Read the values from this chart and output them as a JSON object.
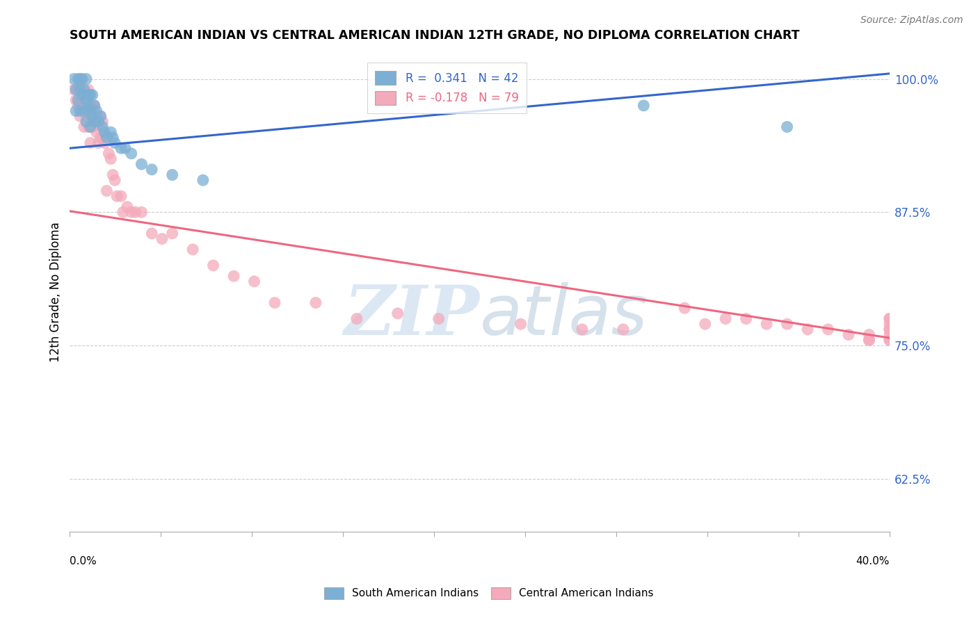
{
  "title": "SOUTH AMERICAN INDIAN VS CENTRAL AMERICAN INDIAN 12TH GRADE, NO DIPLOMA CORRELATION CHART",
  "source": "Source: ZipAtlas.com",
  "ylabel": "12th Grade, No Diploma",
  "xmin": 0.0,
  "xmax": 0.4,
  "ymin": 0.575,
  "ymax": 1.025,
  "yticks": [
    1.0,
    0.875,
    0.75,
    0.625
  ],
  "ytick_labels": [
    "100.0%",
    "87.5%",
    "75.0%",
    "62.5%"
  ],
  "legend_line1": "R =  0.341   N = 42",
  "legend_line2": "R = -0.178   N = 79",
  "color_blue": "#7BAFD4",
  "color_pink": "#F4AABB",
  "color_blue_line": "#3366CC",
  "color_pink_line": "#EE6680",
  "color_axis_labels": "#3366CC",
  "watermark_zip": "ZIP",
  "watermark_atlas": "atlas",
  "blue_line_x0": 0.0,
  "blue_line_y0": 0.935,
  "blue_line_x1": 0.4,
  "blue_line_y1": 1.005,
  "pink_line_x0": 0.0,
  "pink_line_y0": 0.876,
  "pink_line_x1": 0.4,
  "pink_line_y1": 0.757,
  "south_american_x": [
    0.002,
    0.003,
    0.003,
    0.004,
    0.004,
    0.005,
    0.005,
    0.005,
    0.006,
    0.006,
    0.007,
    0.007,
    0.008,
    0.008,
    0.008,
    0.009,
    0.009,
    0.01,
    0.01,
    0.01,
    0.011,
    0.011,
    0.012,
    0.012,
    0.013,
    0.014,
    0.015,
    0.016,
    0.017,
    0.018,
    0.02,
    0.021,
    0.022,
    0.025,
    0.027,
    0.03,
    0.035,
    0.04,
    0.05,
    0.065,
    0.28,
    0.35
  ],
  "south_american_y": [
    1.0,
    0.99,
    0.97,
    1.0,
    0.98,
    1.0,
    0.99,
    0.97,
    1.0,
    0.985,
    0.99,
    0.97,
    1.0,
    0.98,
    0.96,
    0.985,
    0.975,
    0.985,
    0.97,
    0.955,
    0.985,
    0.965,
    0.975,
    0.96,
    0.97,
    0.96,
    0.965,
    0.955,
    0.95,
    0.945,
    0.95,
    0.945,
    0.94,
    0.935,
    0.935,
    0.93,
    0.92,
    0.915,
    0.91,
    0.905,
    0.975,
    0.955
  ],
  "central_american_x": [
    0.002,
    0.003,
    0.004,
    0.004,
    0.005,
    0.005,
    0.006,
    0.006,
    0.007,
    0.007,
    0.007,
    0.008,
    0.008,
    0.009,
    0.009,
    0.009,
    0.01,
    0.01,
    0.01,
    0.011,
    0.011,
    0.012,
    0.012,
    0.013,
    0.013,
    0.014,
    0.014,
    0.015,
    0.015,
    0.016,
    0.016,
    0.017,
    0.018,
    0.019,
    0.02,
    0.021,
    0.022,
    0.023,
    0.025,
    0.026,
    0.028,
    0.03,
    0.032,
    0.035,
    0.04,
    0.045,
    0.05,
    0.06,
    0.07,
    0.08,
    0.09,
    0.1,
    0.12,
    0.14,
    0.16,
    0.18,
    0.22,
    0.25,
    0.27,
    0.3,
    0.31,
    0.32,
    0.33,
    0.34,
    0.35,
    0.36,
    0.37,
    0.38,
    0.39,
    0.39,
    0.39,
    0.4,
    0.4,
    0.4,
    0.4,
    0.4,
    0.4,
    0.4,
    0.4
  ],
  "central_american_y": [
    0.99,
    0.98,
    0.99,
    0.975,
    0.98,
    0.965,
    0.99,
    0.975,
    0.985,
    0.97,
    0.955,
    0.98,
    0.965,
    0.99,
    0.97,
    0.955,
    0.975,
    0.955,
    0.94,
    0.975,
    0.96,
    0.975,
    0.955,
    0.965,
    0.95,
    0.96,
    0.94,
    0.965,
    0.945,
    0.96,
    0.945,
    0.94,
    0.895,
    0.93,
    0.925,
    0.91,
    0.905,
    0.89,
    0.89,
    0.875,
    0.88,
    0.875,
    0.875,
    0.875,
    0.855,
    0.85,
    0.855,
    0.84,
    0.825,
    0.815,
    0.81,
    0.79,
    0.79,
    0.775,
    0.78,
    0.775,
    0.77,
    0.765,
    0.765,
    0.785,
    0.77,
    0.775,
    0.775,
    0.77,
    0.77,
    0.765,
    0.765,
    0.76,
    0.76,
    0.755,
    0.755,
    0.775,
    0.775,
    0.77,
    0.765,
    0.765,
    0.76,
    0.755,
    0.755
  ]
}
